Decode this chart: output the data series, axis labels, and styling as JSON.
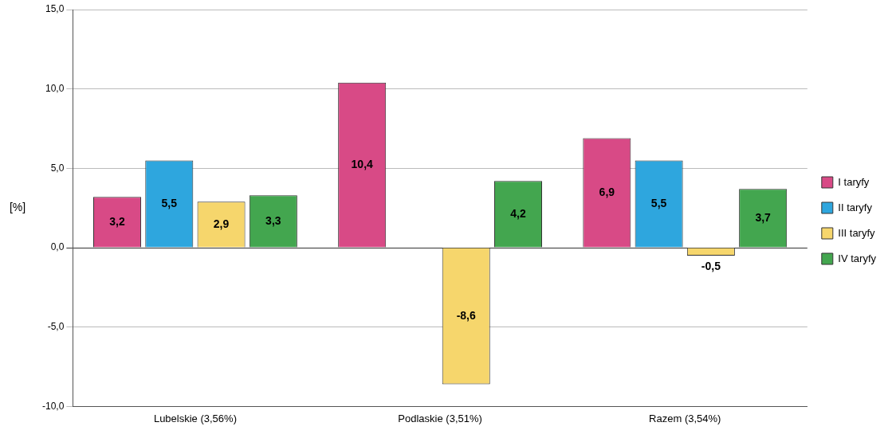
{
  "chart_data": {
    "type": "bar",
    "ylabel": "[%]",
    "categories": [
      "Lubelskie (3,56%)",
      "Podlaskie (3,51%)",
      "Razem (3,54%)"
    ],
    "series": [
      {
        "name": "I taryfy",
        "color": "#d84a86",
        "values": [
          3.2,
          10.4,
          6.9
        ],
        "value_labels": [
          "3,2",
          "10,4",
          "6,9"
        ]
      },
      {
        "name": "II taryfy",
        "color": "#2ea6de",
        "values": [
          5.5,
          null,
          5.5
        ],
        "value_labels": [
          "5,5",
          null,
          "5,5"
        ]
      },
      {
        "name": "III taryfy",
        "color": "#f6d66c",
        "values": [
          2.9,
          -8.6,
          -0.5
        ],
        "value_labels": [
          "2,9",
          "-8,6",
          "-0,5"
        ]
      },
      {
        "name": "IV taryfy",
        "color": "#43a64f",
        "values": [
          3.3,
          4.2,
          3.7
        ],
        "value_labels": [
          "3,3",
          "4,2",
          "3,7"
        ]
      }
    ],
    "ylim": [
      -10,
      15
    ],
    "yticks": [
      {
        "value": -10,
        "label": "-10,0"
      },
      {
        "value": -5,
        "label": "-5,0"
      },
      {
        "value": 0,
        "label": "0,0"
      },
      {
        "value": 5,
        "label": "5,0"
      },
      {
        "value": 10,
        "label": "10,0"
      },
      {
        "value": 15,
        "label": "15,0"
      }
    ],
    "grid": "y",
    "legend": "right"
  }
}
